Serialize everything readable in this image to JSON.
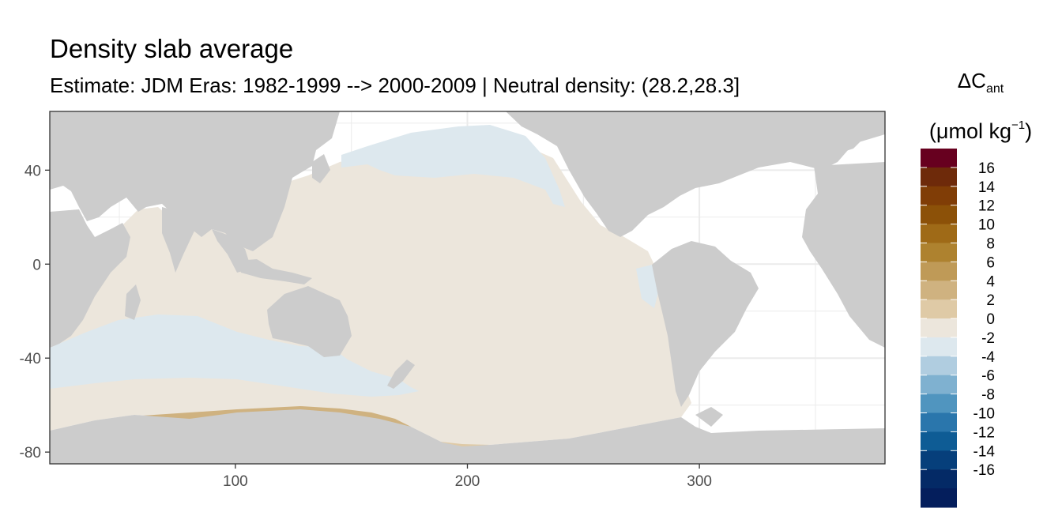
{
  "title": "Density slab average",
  "subtitle": "Estimate: JDM Eras: 1982-1999 --> 2000-2009 | Neutral density: (28.2,28.3]",
  "legend": {
    "title_main": "ΔC",
    "title_sub": "ant",
    "unit_prefix": "(μmol kg",
    "unit_sup": "−1",
    "unit_suffix": ")",
    "breaks": [
      "16",
      "14",
      "12",
      "10",
      "8",
      "6",
      "4",
      "2",
      "0",
      "-2",
      "-4",
      "-6",
      "-8",
      "-10",
      "-12",
      "-14",
      "-16"
    ],
    "colors": [
      "#67001f",
      "#6e2a0a",
      "#803d06",
      "#8c5108",
      "#9f6a17",
      "#ae822f",
      "#bf9a57",
      "#cfb280",
      "#dfcaa6",
      "#ece6dc",
      "#dde8ee",
      "#b0cde0",
      "#7fb1d0",
      "#5095bf",
      "#2a76ac",
      "#0e5c95",
      "#063f7b",
      "#042a66",
      "#041e5c"
    ]
  },
  "axes": {
    "x_ticks": [
      100,
      200,
      300
    ],
    "y_ticks": [
      40,
      0,
      -40,
      -80
    ],
    "xlim": [
      20,
      380
    ],
    "ylim": [
      -85,
      65
    ]
  },
  "colors": {
    "land": "#cccccc",
    "ocean_nodata": "#ffffff",
    "grid": "#ebebeb",
    "panel_border": "#333333",
    "positive_0_2": "#ece6dc",
    "negative_0_2": "#dde8ee",
    "positive_high": "#ae822f"
  }
}
